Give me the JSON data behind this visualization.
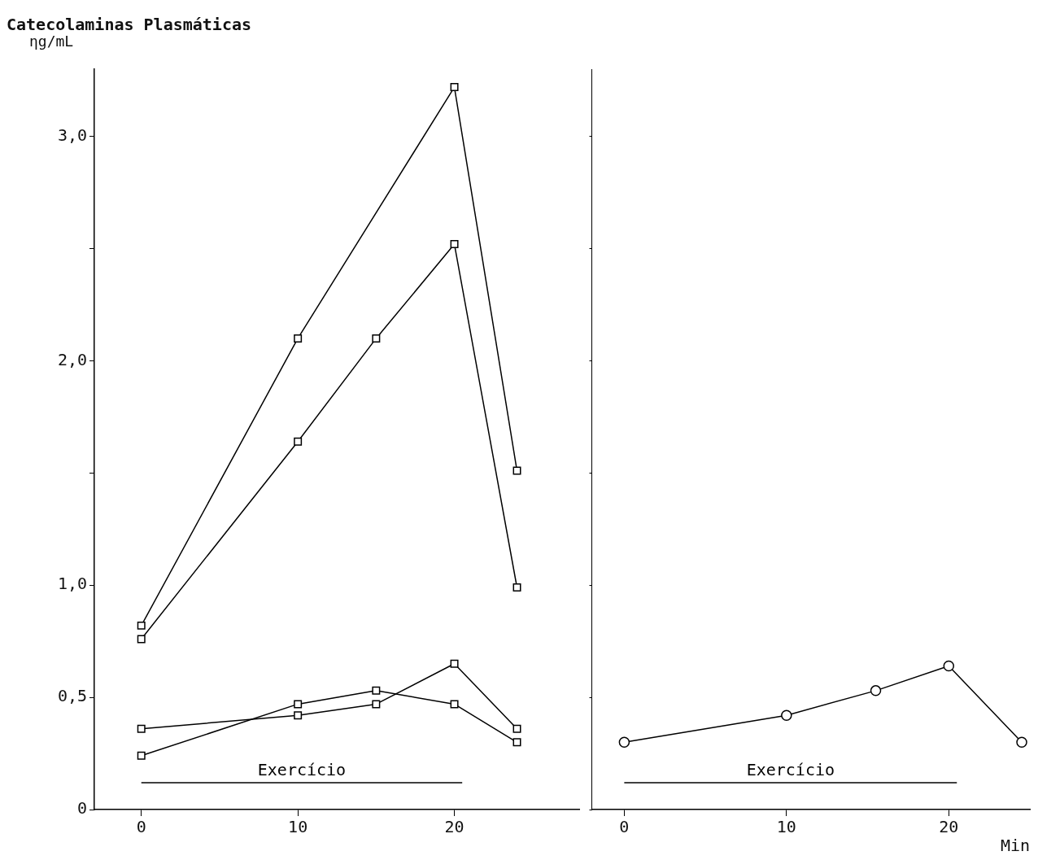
{
  "chart_data": [
    {
      "type": "line",
      "title": "Catecolaminas Plasmáticas",
      "ylabel": "ηg/mL",
      "marker": "square",
      "legend": false,
      "grid": false,
      "xlim": [
        -3,
        28
      ],
      "xticks": [
        0,
        10,
        20
      ],
      "ylim": [
        0,
        3.3
      ],
      "yticks": [
        {
          "value": 0,
          "label": "0"
        },
        {
          "value": 0.5,
          "label": "0,5"
        },
        {
          "value": 1,
          "label": "1,0"
        },
        {
          "value": 1.5,
          "label": null
        },
        {
          "value": 2,
          "label": "2,0"
        },
        {
          "value": 2.5,
          "label": null
        },
        {
          "value": 3,
          "label": "3,0"
        }
      ],
      "series": [
        {
          "name": "Exercício",
          "marker": "none",
          "color": "#000000",
          "x": [
            0,
            20.5
          ],
          "values": [
            0.12,
            0.12
          ]
        },
        {
          "color": "#000000",
          "x": [
            0,
            10,
            20,
            24
          ],
          "values": [
            0.82,
            2.1,
            3.22,
            1.51
          ]
        },
        {
          "color": "#000000",
          "x": [
            0,
            10,
            15,
            20,
            24
          ],
          "values": [
            0.76,
            1.64,
            2.1,
            2.52,
            0.99
          ]
        },
        {
          "color": "#000000",
          "x": [
            0,
            10,
            15,
            20,
            24
          ],
          "values": [
            0.36,
            0.42,
            0.47,
            0.65,
            0.36
          ]
        },
        {
          "color": "#000000",
          "x": [
            0,
            10,
            15,
            20,
            24
          ],
          "values": [
            0.24,
            0.47,
            0.53,
            0.47,
            0.3
          ]
        }
      ]
    },
    {
      "type": "line",
      "xlabel": "Min",
      "marker": "circle",
      "legend": false,
      "grid": false,
      "tick_labels": "x",
      "xlim": [
        -2,
        25
      ],
      "xticks": [
        0,
        10,
        20
      ],
      "ylim": [
        0,
        3.3
      ],
      "yticks": [
        0,
        0.5,
        1,
        1.5,
        2,
        2.5,
        3
      ],
      "series": [
        {
          "name": "Exercício",
          "marker": "none",
          "color": "#000000",
          "x": [
            0,
            20.5
          ],
          "values": [
            0.12,
            0.12
          ]
        },
        {
          "color": "#000000",
          "x": [
            0,
            10,
            15.5,
            20,
            24.5
          ],
          "values": [
            0.3,
            0.42,
            0.53,
            0.64,
            0.3
          ]
        }
      ]
    }
  ]
}
